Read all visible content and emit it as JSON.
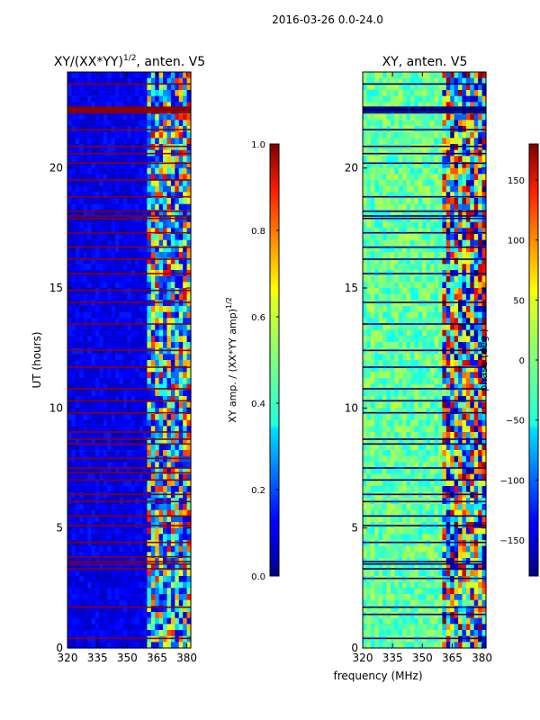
{
  "suptitle": "2016-03-26 0.0-24.0",
  "colors": {
    "low_band_base": "#0a0a9e",
    "flag_amp": "#8b0000",
    "flag_phase": "#00007f"
  },
  "chart_data": [
    {
      "type": "heatmap",
      "name": "amplitude-ratio",
      "title": "XY/(XX*YY)",
      "title_exponent": "1/2",
      "title_suffix": ", anten. V5",
      "xlabel": "",
      "ylabel": "UT (hours)",
      "xlim": [
        320,
        382
      ],
      "ylim": [
        0,
        24
      ],
      "xticks": [
        320,
        335,
        350,
        365,
        380
      ],
      "yticks": [
        0,
        5,
        10,
        15,
        20
      ],
      "colorbar": {
        "label": "XY amp. / (XX*YY amp)",
        "label_exponent": "1/2",
        "range": [
          0.0,
          1.0
        ],
        "ticks": [
          0.0,
          0.2,
          0.4,
          0.6,
          0.8,
          1.0
        ],
        "tick_labels": [
          "0.0",
          "0.2",
          "0.4",
          "0.6",
          "0.8",
          "1.0"
        ],
        "colormap": "jet"
      },
      "flagged_hours": [
        0.4,
        1.7,
        3.3,
        3.5,
        3.6,
        3.8,
        4.4,
        5.1,
        5.5,
        6.1,
        6.4,
        7.0,
        7.3,
        7.5,
        7.9,
        8.5,
        8.7,
        9.0,
        9.8,
        10.3,
        10.8,
        11.7,
        12.4,
        13.5,
        14.4,
        14.9,
        15.6,
        16.2,
        16.7,
        17.3,
        17.9,
        18.0,
        18.2,
        18.8,
        19.5,
        20.2,
        20.6,
        20.9,
        21.6,
        22.3,
        22.4,
        23.5
      ],
      "notes": "Low band (320-362 MHz) amplitude ratio near 0.05-0.15; high band (362-382 MHz) shows bright streaks 0.4-0.9; flagged integrations render dark red."
    },
    {
      "type": "heatmap",
      "name": "phase",
      "title": "XY, anten. V5",
      "xlabel": "frequency (MHz)",
      "ylabel": "",
      "xlim": [
        320,
        382
      ],
      "ylim": [
        0,
        24
      ],
      "xticks": [
        320,
        335,
        350,
        365,
        380
      ],
      "yticks": [
        0,
        5,
        10,
        15,
        20
      ],
      "colorbar": {
        "label": "phase (deg.)",
        "range": [
          -180,
          180
        ],
        "ticks": [
          -150,
          -100,
          -50,
          0,
          50,
          100,
          150
        ],
        "tick_labels": [
          "−150",
          "−100",
          "−50",
          "0",
          "50",
          "100",
          "150"
        ],
        "colormap": "jet"
      },
      "flagged_hours": [
        0.4,
        1.4,
        1.7,
        2.9,
        3.3,
        3.5,
        3.6,
        4.4,
        5.1,
        5.5,
        6.1,
        6.4,
        7.0,
        7.5,
        8.5,
        8.7,
        9.8,
        10.3,
        10.8,
        11.7,
        12.4,
        13.5,
        14.4,
        15.6,
        16.2,
        16.7,
        17.3,
        17.9,
        18.0,
        18.2,
        18.8,
        20.2,
        20.6,
        20.9,
        21.6,
        22.3,
        22.5,
        23.5
      ],
      "notes": "Low band phase ~ -30 to +20 deg; high band phase wraps across full -180..180 range; flagged integrations render dark blue."
    }
  ]
}
